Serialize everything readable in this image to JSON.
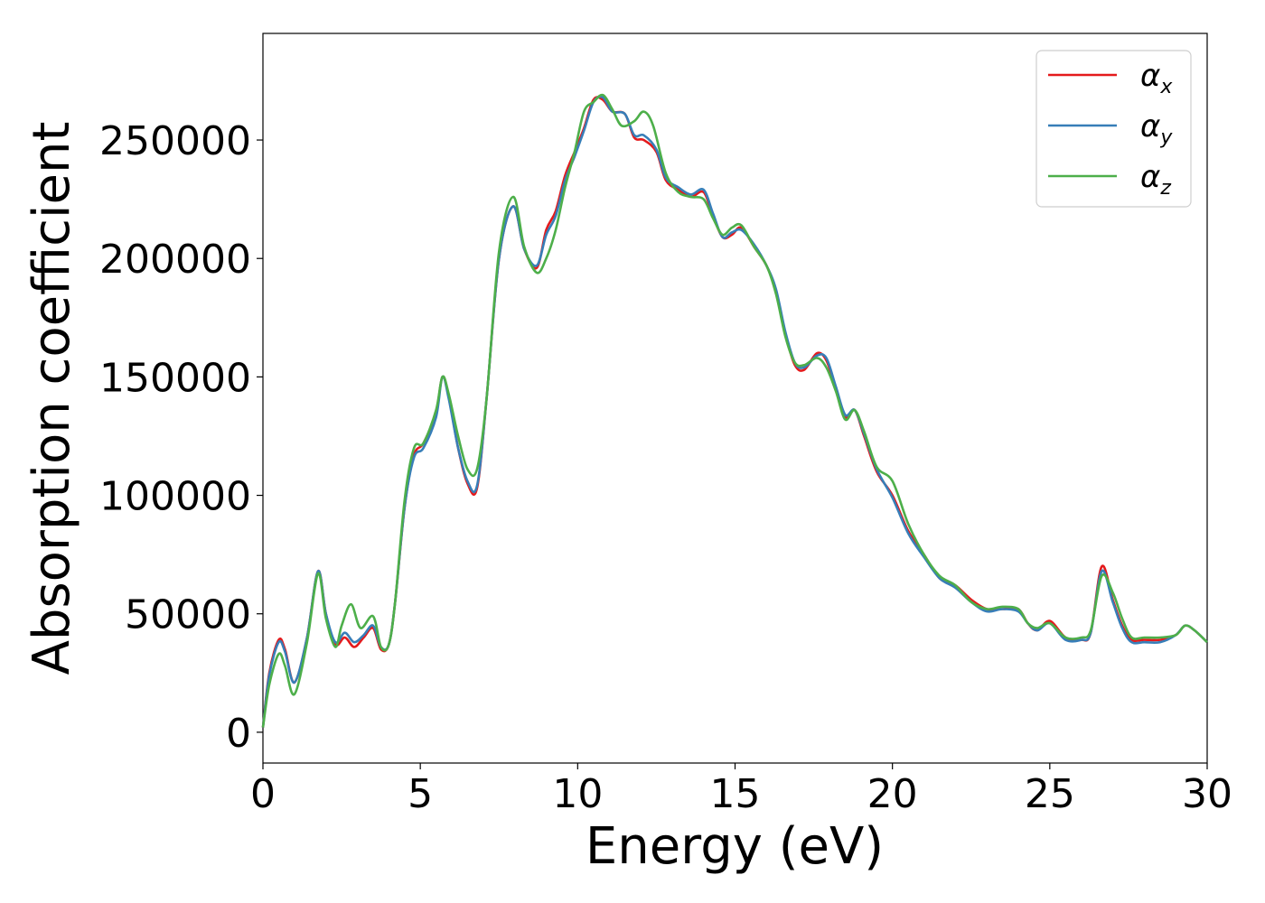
{
  "chart_data": {
    "type": "line",
    "title": "",
    "xlabel": "Energy (eV)",
    "ylabel": "Absorption coefficient",
    "xlim": [
      0,
      30
    ],
    "ylim": [
      -13000,
      295000
    ],
    "xticks": [
      0,
      5,
      10,
      15,
      20,
      25,
      30
    ],
    "xtick_labels": [
      "0",
      "5",
      "10",
      "15",
      "20",
      "25",
      "30"
    ],
    "yticks": [
      0,
      50000,
      100000,
      150000,
      200000,
      250000
    ],
    "ytick_labels": [
      "0",
      "50000",
      "100000",
      "150000",
      "200000",
      "250000"
    ],
    "grid": false,
    "legend_position": "top-right",
    "series": [
      {
        "name": "α_x",
        "symbol": "α",
        "subscript": "x",
        "color": "#e41a1c",
        "x": [
          0,
          0.2,
          0.5,
          0.7,
          1.0,
          1.4,
          1.75,
          2.0,
          2.3,
          2.6,
          2.9,
          3.2,
          3.5,
          3.75,
          4.0,
          4.2,
          4.5,
          4.8,
          5.1,
          5.5,
          5.7,
          5.9,
          6.2,
          6.5,
          6.8,
          7.1,
          7.5,
          7.95,
          8.3,
          8.7,
          9.0,
          9.3,
          9.6,
          9.9,
          10.2,
          10.5,
          10.8,
          11.1,
          11.5,
          11.8,
          12.1,
          12.5,
          12.8,
          13.2,
          13.6,
          14.0,
          14.3,
          14.6,
          14.9,
          15.2,
          15.6,
          16.0,
          16.3,
          16.6,
          16.9,
          17.2,
          17.6,
          17.9,
          18.2,
          18.5,
          18.8,
          19.1,
          19.5,
          20.0,
          20.5,
          21.0,
          21.5,
          22.0,
          22.5,
          23.0,
          23.5,
          24.0,
          24.3,
          24.6,
          25.0,
          25.5,
          26.0,
          26.3,
          26.65,
          27.0,
          27.3,
          27.6,
          28.0,
          28.5,
          29.0,
          29.3,
          29.6,
          30.0
        ],
        "y": [
          2000,
          25000,
          39000,
          35000,
          21000,
          40000,
          68000,
          50000,
          37000,
          40000,
          36000,
          40000,
          44000,
          35000,
          37000,
          55000,
          95000,
          117000,
          122000,
          135000,
          150000,
          142000,
          120000,
          105000,
          103000,
          140000,
          200000,
          222000,
          204000,
          196000,
          212000,
          220000,
          235000,
          245000,
          255000,
          267000,
          267000,
          262000,
          261000,
          251000,
          250000,
          245000,
          233000,
          229000,
          226000,
          228000,
          218000,
          209000,
          210000,
          213000,
          205000,
          197000,
          186000,
          168000,
          155000,
          153000,
          160000,
          157000,
          145000,
          133000,
          136000,
          125000,
          110000,
          100000,
          85000,
          75000,
          65000,
          62000,
          56000,
          52000,
          52000,
          52000,
          46000,
          43000,
          47000,
          40000,
          39000,
          42000,
          70000,
          56000,
          45000,
          39000,
          39000,
          39000,
          41000,
          45000,
          43000,
          38000
        ]
      },
      {
        "name": "α_y",
        "symbol": "α",
        "subscript": "y",
        "color": "#377eb8",
        "x": [
          0,
          0.2,
          0.5,
          0.7,
          1.0,
          1.4,
          1.75,
          2.0,
          2.3,
          2.6,
          2.9,
          3.2,
          3.5,
          3.75,
          4.0,
          4.2,
          4.5,
          4.8,
          5.1,
          5.5,
          5.7,
          5.9,
          6.2,
          6.5,
          6.8,
          7.1,
          7.5,
          7.95,
          8.3,
          8.7,
          9.0,
          9.3,
          9.6,
          9.9,
          10.2,
          10.5,
          10.8,
          11.1,
          11.5,
          11.8,
          12.1,
          12.5,
          12.8,
          13.2,
          13.6,
          14.0,
          14.3,
          14.6,
          14.9,
          15.2,
          15.6,
          16.0,
          16.3,
          16.6,
          16.9,
          17.2,
          17.6,
          17.9,
          18.2,
          18.5,
          18.8,
          19.1,
          19.5,
          20.0,
          20.5,
          21.0,
          21.5,
          22.0,
          22.5,
          23.0,
          23.5,
          24.0,
          24.3,
          24.6,
          25.0,
          25.5,
          26.0,
          26.3,
          26.65,
          27.0,
          27.3,
          27.6,
          28.0,
          28.5,
          29.0,
          29.3,
          29.6,
          30.0
        ],
        "y": [
          2000,
          24000,
          38000,
          34000,
          21000,
          40000,
          68000,
          50000,
          38000,
          42000,
          38000,
          41000,
          45000,
          36000,
          37000,
          55000,
          95000,
          116000,
          120000,
          133000,
          150000,
          141000,
          120000,
          106000,
          104000,
          140000,
          200000,
          222000,
          204000,
          197000,
          210000,
          218000,
          233000,
          243000,
          254000,
          266000,
          268000,
          262000,
          261000,
          252000,
          252000,
          246000,
          234000,
          230000,
          227000,
          229000,
          219000,
          209000,
          211000,
          212000,
          206000,
          197000,
          187000,
          169000,
          156000,
          154000,
          159000,
          158000,
          146000,
          134000,
          136000,
          126000,
          111000,
          99000,
          84000,
          74000,
          65000,
          61000,
          55000,
          51000,
          52000,
          51000,
          46000,
          43000,
          46000,
          39000,
          39000,
          42000,
          68000,
          55000,
          44000,
          38000,
          38000,
          38000,
          41000,
          45000,
          43000,
          38000
        ]
      },
      {
        "name": "α_z",
        "symbol": "α",
        "subscript": "z",
        "color": "#4daf4a",
        "x": [
          0,
          0.2,
          0.5,
          0.7,
          1.0,
          1.4,
          1.75,
          2.0,
          2.3,
          2.5,
          2.8,
          3.1,
          3.5,
          3.75,
          4.0,
          4.2,
          4.5,
          4.8,
          5.1,
          5.5,
          5.7,
          5.9,
          6.2,
          6.5,
          6.8,
          7.1,
          7.5,
          7.95,
          8.3,
          8.7,
          9.0,
          9.3,
          9.6,
          9.9,
          10.2,
          10.5,
          10.8,
          11.1,
          11.4,
          11.8,
          12.1,
          12.4,
          12.8,
          13.2,
          13.6,
          14.0,
          14.3,
          14.6,
          14.9,
          15.2,
          15.6,
          16.0,
          16.3,
          16.6,
          16.9,
          17.2,
          17.6,
          17.9,
          18.2,
          18.5,
          18.8,
          19.1,
          19.5,
          20.0,
          20.5,
          21.0,
          21.5,
          22.0,
          22.5,
          23.0,
          23.5,
          24.0,
          24.3,
          24.6,
          25.0,
          25.5,
          26.0,
          26.3,
          26.65,
          27.0,
          27.3,
          27.6,
          28.0,
          28.5,
          29.0,
          29.3,
          29.6,
          30.0
        ],
        "y": [
          2000,
          20000,
          33000,
          28000,
          16000,
          38000,
          67000,
          48000,
          36000,
          45000,
          54000,
          44000,
          49000,
          36000,
          37000,
          55000,
          98000,
          120000,
          122000,
          136000,
          150000,
          143000,
          125000,
          111000,
          111000,
          140000,
          203000,
          226000,
          205000,
          194000,
          200000,
          212000,
          230000,
          245000,
          262000,
          266000,
          269000,
          263000,
          256000,
          258000,
          262000,
          256000,
          236000,
          228000,
          226000,
          225000,
          217000,
          210000,
          213000,
          214000,
          205000,
          197000,
          185000,
          167000,
          156000,
          155000,
          158000,
          154000,
          144000,
          132000,
          136000,
          127000,
          112000,
          106000,
          88000,
          75000,
          66000,
          62000,
          55000,
          52000,
          53000,
          52000,
          46000,
          44000,
          46000,
          40000,
          40000,
          43000,
          66000,
          59000,
          48000,
          40000,
          40000,
          40000,
          41000,
          45000,
          43000,
          38000
        ]
      }
    ]
  }
}
